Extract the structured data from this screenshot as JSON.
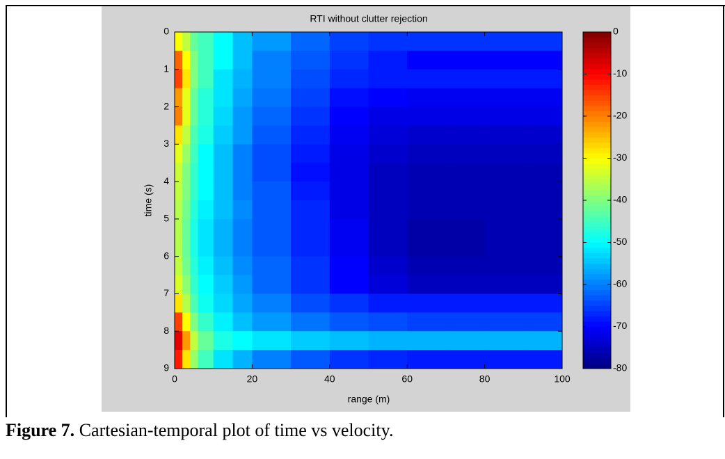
{
  "chart_data": {
    "type": "heatmap",
    "title": "RTI without clutter rejection",
    "xlabel": "range (m)",
    "ylabel": "time (s)",
    "colormap": "jet",
    "xbins": [
      0,
      2,
      4,
      6,
      10,
      15,
      20,
      30,
      40,
      50,
      60,
      70,
      80,
      90,
      100
    ],
    "ybins": [
      0,
      0.5,
      1,
      1.5,
      2,
      2.5,
      3,
      3.5,
      4,
      4.5,
      5,
      5.5,
      6,
      6.5,
      7,
      7.5,
      8,
      8.5,
      9
    ],
    "values": [
      [
        -30,
        -35,
        -42,
        -45,
        -50,
        -55,
        -58,
        -62,
        -65,
        -66,
        -66,
        -66,
        -66,
        -66
      ],
      [
        -18,
        -30,
        -40,
        -45,
        -50,
        -55,
        -60,
        -63,
        -66,
        -68,
        -70,
        -70,
        -70,
        -70
      ],
      [
        -15,
        -28,
        -40,
        -45,
        -52,
        -56,
        -60,
        -64,
        -67,
        -68,
        -68,
        -68,
        -68,
        -68
      ],
      [
        -22,
        -32,
        -42,
        -47,
        -52,
        -57,
        -61,
        -65,
        -69,
        -70,
        -71,
        -71,
        -71,
        -71
      ],
      [
        -20,
        -32,
        -42,
        -47,
        -53,
        -58,
        -62,
        -66,
        -70,
        -72,
        -72,
        -72,
        -72,
        -72
      ],
      [
        -28,
        -35,
        -44,
        -48,
        -54,
        -58,
        -63,
        -67,
        -71,
        -73,
        -74,
        -74,
        -74,
        -74
      ],
      [
        -32,
        -38,
        -45,
        -50,
        -55,
        -60,
        -64,
        -68,
        -72,
        -74,
        -75,
        -75,
        -75,
        -75
      ],
      [
        -34,
        -40,
        -46,
        -50,
        -55,
        -60,
        -64,
        -69,
        -72,
        -75,
        -76,
        -76,
        -76,
        -76
      ],
      [
        -35,
        -40,
        -46,
        -50,
        -55,
        -60,
        -63,
        -68,
        -72,
        -75,
        -76,
        -76,
        -76,
        -76
      ],
      [
        -36,
        -41,
        -47,
        -51,
        -55,
        -59,
        -63,
        -67,
        -72,
        -75,
        -76,
        -76,
        -76,
        -76
      ],
      [
        -36,
        -42,
        -48,
        -52,
        -56,
        -60,
        -63,
        -67,
        -71,
        -75,
        -77,
        -77,
        -76,
        -76
      ],
      [
        -36,
        -42,
        -48,
        -52,
        -56,
        -60,
        -63,
        -67,
        -71,
        -75,
        -77,
        -77,
        -76,
        -76
      ],
      [
        -35,
        -41,
        -47,
        -51,
        -55,
        -59,
        -62,
        -66,
        -70,
        -74,
        -76,
        -76,
        -76,
        -76
      ],
      [
        -33,
        -39,
        -46,
        -50,
        -54,
        -58,
        -62,
        -66,
        -70,
        -73,
        -75,
        -75,
        -75,
        -75
      ],
      [
        -28,
        -36,
        -44,
        -49,
        -53,
        -57,
        -60,
        -64,
        -66,
        -68,
        -68,
        -68,
        -68,
        -68
      ],
      [
        -15,
        -30,
        -40,
        -46,
        -51,
        -55,
        -58,
        -61,
        -63,
        -64,
        -65,
        -65,
        -65,
        -65
      ],
      [
        -8,
        -22,
        -35,
        -42,
        -48,
        -50,
        -52,
        -54,
        -55,
        -56,
        -56,
        -56,
        -56,
        -56
      ],
      [
        -12,
        -28,
        -38,
        -45,
        -52,
        -56,
        -60,
        -63,
        -66,
        -67,
        -68,
        -68,
        -68,
        -68
      ]
    ],
    "xlim": [
      0,
      100
    ],
    "xticks": [
      0,
      20,
      40,
      60,
      80,
      100
    ],
    "ylim": [
      9,
      0
    ],
    "yticks": [
      0,
      1,
      2,
      3,
      4,
      5,
      6,
      7,
      8,
      9
    ],
    "zlim": [
      -80,
      0
    ],
    "zticks": [
      0,
      -10,
      -20,
      -30,
      -40,
      -50,
      -60,
      -70,
      -80
    ]
  },
  "caption": {
    "label": "Figure 7.",
    "text": "Cartesian-temporal plot of time vs velocity."
  }
}
